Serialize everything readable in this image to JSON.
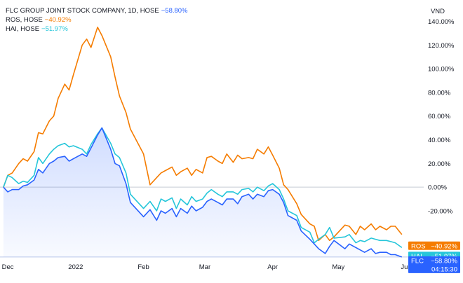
{
  "chart_data": {
    "type": "line",
    "currency": "VND",
    "y_tick_labels": [
      "140.00%",
      "120.00%",
      "100.00%",
      "80.00%",
      "60.00%",
      "40.00%",
      "20.00%",
      "0.00%",
      "-20.00%"
    ],
    "y_ticks": [
      140,
      120,
      100,
      80,
      60,
      40,
      20,
      0,
      -20
    ],
    "ylim": [
      -62,
      145
    ],
    "x_tick_labels": [
      "Dec",
      "2022",
      "Feb",
      "Mar",
      "Apr",
      "May",
      "Jun"
    ],
    "x_ticks": [
      "2021-12-01",
      "2022-01-01",
      "2022-02-01",
      "2022-03-01",
      "2022-04-01",
      "2022-05-01",
      "2022-06-01"
    ],
    "x_range": [
      "2021-11-30",
      "2022-06-09"
    ],
    "grid": false,
    "legend_position": "top-left",
    "x": [
      "2021-11-29",
      "2021-12-01",
      "2021-12-03",
      "2021-12-06",
      "2021-12-08",
      "2021-12-10",
      "2021-12-13",
      "2021-12-15",
      "2021-12-17",
      "2021-12-20",
      "2021-12-22",
      "2021-12-24",
      "2021-12-27",
      "2021-12-29",
      "2021-12-31",
      "2022-01-04",
      "2022-01-06",
      "2022-01-08",
      "2022-01-11",
      "2022-01-13",
      "2022-01-17",
      "2022-01-19",
      "2022-01-21",
      "2022-01-24",
      "2022-01-26",
      "2022-02-01",
      "2022-02-04",
      "2022-02-07",
      "2022-02-09",
      "2022-02-11",
      "2022-02-14",
      "2022-02-16",
      "2022-02-18",
      "2022-02-21",
      "2022-02-23",
      "2022-02-25",
      "2022-02-28",
      "2022-03-02",
      "2022-03-04",
      "2022-03-07",
      "2022-03-09",
      "2022-03-11",
      "2022-03-14",
      "2022-03-16",
      "2022-03-18",
      "2022-03-21",
      "2022-03-23",
      "2022-03-25",
      "2022-03-28",
      "2022-03-30",
      "2022-04-01",
      "2022-04-04",
      "2022-04-06",
      "2022-04-08",
      "2022-04-12",
      "2022-04-14",
      "2022-04-18",
      "2022-04-20",
      "2022-04-22",
      "2022-04-25",
      "2022-04-27",
      "2022-04-29",
      "2022-05-04",
      "2022-05-06",
      "2022-05-09",
      "2022-05-11",
      "2022-05-13",
      "2022-05-16",
      "2022-05-18",
      "2022-05-20",
      "2022-05-23",
      "2022-05-25",
      "2022-05-27",
      "2022-05-30"
    ],
    "series": [
      {
        "name": "ROS, HOSE",
        "color": "#f57c00",
        "last_label": "−40.92%",
        "badge": "ROS",
        "badge_value": "−40.92%",
        "values": [
          0,
          10,
          12,
          20,
          24,
          22,
          30,
          46,
          45,
          56,
          60,
          75,
          87,
          82,
          95,
          120,
          125,
          118,
          135,
          128,
          110,
          93,
          77,
          63,
          49,
          28,
          2,
          8,
          12,
          14,
          17,
          10,
          13,
          16,
          10,
          15,
          12,
          25,
          26,
          22,
          20,
          28,
          21,
          27,
          24,
          25,
          24,
          32,
          28,
          34,
          27,
          16,
          2,
          -2,
          -14,
          -23,
          -31,
          -33,
          -45,
          -40,
          -45,
          -42,
          -32,
          -33,
          -40,
          -33,
          -36,
          -31,
          -36,
          -33,
          -36,
          -33,
          -33,
          -40
        ]
      },
      {
        "name": "HAI, HOSE",
        "color": "#26c6da",
        "last_label": "−51.97%",
        "badge": "HAI",
        "badge_value": "−51.97%",
        "values": [
          0,
          10,
          8,
          3,
          5,
          4,
          10,
          25,
          20,
          28,
          32,
          35,
          37,
          34,
          35,
          32,
          28,
          36,
          45,
          50,
          37,
          28,
          25,
          12,
          -6,
          -18,
          -12,
          -20,
          -10,
          -12,
          -9,
          -18,
          -10,
          -15,
          -8,
          -12,
          -10,
          -5,
          -2,
          -6,
          -8,
          -4,
          -4,
          -6,
          -2,
          -1,
          -4,
          0,
          -3,
          1,
          3,
          -2,
          -10,
          -20,
          -24,
          -34,
          -38,
          -47,
          -44,
          -40,
          -34,
          -43,
          -42,
          -40,
          -47,
          -45,
          -46,
          -43,
          -44,
          -45,
          -45,
          -46,
          -47,
          -51
        ]
      },
      {
        "name": "FLC GROUP JOINT STOCK COMPANY, 1D, HOSE",
        "color": "#2962ff",
        "last_label": "−58.80%",
        "badge": "FLC",
        "badge_value": "−58.80%",
        "badge_time": "04:15:30",
        "values": [
          0,
          -4,
          -2,
          -2,
          1,
          2,
          6,
          15,
          12,
          20,
          22,
          25,
          26,
          22,
          24,
          28,
          26,
          33,
          44,
          50,
          32,
          20,
          18,
          3,
          -13,
          -25,
          -19,
          -28,
          -20,
          -22,
          -18,
          -25,
          -18,
          -22,
          -16,
          -20,
          -17,
          -12,
          -10,
          -13,
          -15,
          -10,
          -10,
          -14,
          -8,
          -6,
          -10,
          -6,
          -8,
          -3,
          -2,
          -6,
          -13,
          -24,
          -28,
          -37,
          -44,
          -48,
          -52,
          -56,
          -50,
          -45,
          -52,
          -48,
          -51,
          -53,
          -55,
          -52,
          -56,
          -55,
          -55,
          -57,
          -57,
          -59
        ]
      }
    ]
  },
  "legend": [
    {
      "text": "FLC GROUP JOINT STOCK COMPANY, 1D, HOSE",
      "value": "−58.80%",
      "color": "#2962ff"
    },
    {
      "text": "ROS, HOSE",
      "value": "−40.92%",
      "color": "#f57c00"
    },
    {
      "text": "HAI, HOSE",
      "value": "−51.97%",
      "color": "#26c6da"
    }
  ]
}
